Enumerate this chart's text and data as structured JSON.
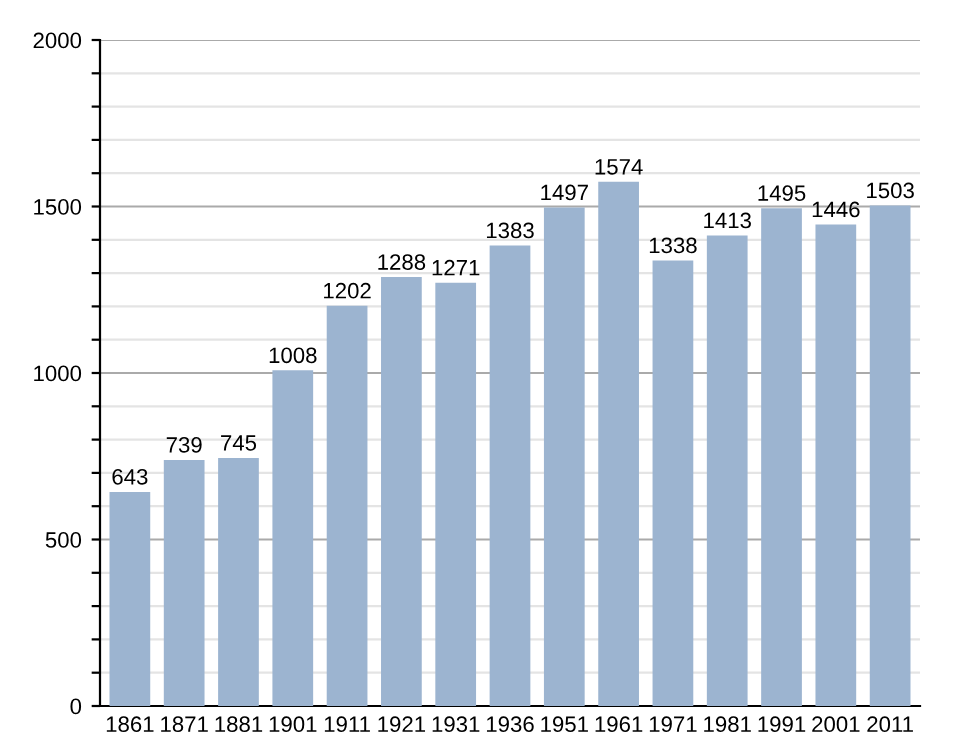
{
  "chart_data": {
    "type": "bar",
    "categories": [
      "1861",
      "1871",
      "1881",
      "1901",
      "1911",
      "1921",
      "1931",
      "1936",
      "1951",
      "1961",
      "1971",
      "1981",
      "1991",
      "2001",
      "2011"
    ],
    "values": [
      643,
      739,
      745,
      1008,
      1202,
      1288,
      1271,
      1383,
      1497,
      1574,
      1338,
      1413,
      1495,
      1446,
      1503
    ],
    "color": "#9cb4d0",
    "data_labels": true,
    "ylim": [
      0,
      2000
    ],
    "yticks": [
      0,
      {
        "value": 100,
        "label": null
      },
      {
        "value": 200,
        "label": null
      },
      {
        "value": 300,
        "label": null
      },
      {
        "value": 400,
        "label": null
      },
      500,
      {
        "value": 600,
        "label": null
      },
      {
        "value": 700,
        "label": null
      },
      {
        "value": 800,
        "label": null
      },
      {
        "value": 900,
        "label": null
      },
      1000,
      {
        "value": 1100,
        "label": null
      },
      {
        "value": 1200,
        "label": null
      },
      {
        "value": 1300,
        "label": null
      },
      {
        "value": 1400,
        "label": null
      },
      1500,
      {
        "value": 1600,
        "label": null
      },
      {
        "value": 1700,
        "label": null
      },
      {
        "value": 1800,
        "label": null
      },
      {
        "value": 1900,
        "label": null
      },
      2000
    ],
    "grid": "y"
  }
}
